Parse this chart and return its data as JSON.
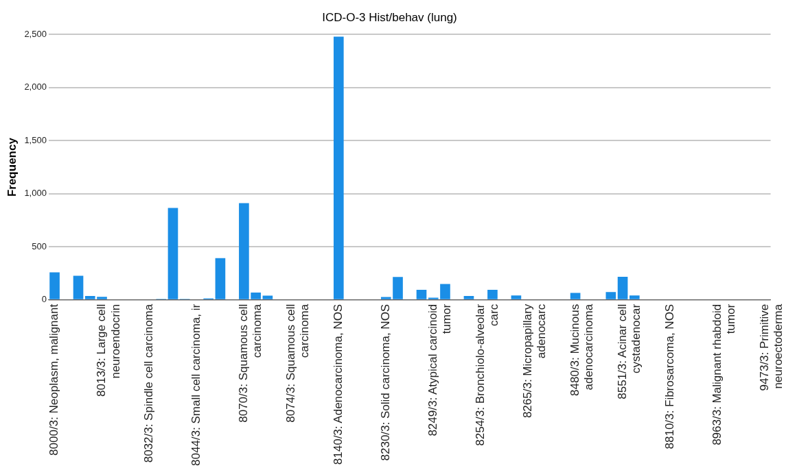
{
  "chart_data": {
    "type": "bar",
    "title": "ICD-O-3 Hist/behav (lung)",
    "ylabel": "Frequency",
    "categories": [
      "8000/3: Neoplasm, malignant",
      null,
      null,
      null,
      "8013/3: Large cell\nneuroendocrin",
      null,
      null,
      null,
      "8032/3: Spindle cell carcinoma",
      null,
      null,
      null,
      "8044/3: Small cell carcinoma, ir",
      null,
      null,
      null,
      "8070/3: Squamous cell\ncarcinoma",
      null,
      null,
      null,
      "8074/3: Squamous cell\ncarcinoma",
      null,
      null,
      null,
      "8140/3: Adenocarcinoma, NOS",
      null,
      null,
      null,
      "8230/3: Solid carcinoma, NOS",
      null,
      null,
      null,
      "8249/3: Atypical carcinoid\ntumor",
      null,
      null,
      null,
      "8254/3: Bronchiolo-alveolar\ncarc",
      null,
      null,
      null,
      "8265/3: Micropapillary\nadenocarc",
      null,
      null,
      null,
      "8480/3: Mucinous\nadenocarcinoma",
      null,
      null,
      null,
      "8551/3: Acinar cell\ncystadenocar",
      null,
      null,
      null,
      "8810/3: Fibrosarcoma, NOS",
      null,
      null,
      null,
      "8963/3: Malignant rhabdoid\ntumor",
      null,
      null,
      null,
      "9473/3: Primitive\nneuroectoderma"
    ],
    "values": [
      260,
      null,
      227,
      38,
      30,
      null,
      null,
      null,
      null,
      10,
      866,
      10,
      null,
      15,
      394,
      null,
      912,
      70,
      40,
      null,
      null,
      null,
      null,
      null,
      2480,
      null,
      null,
      null,
      28,
      216,
      null,
      95,
      22,
      151,
      null,
      38,
      null,
      95,
      null,
      43,
      null,
      null,
      null,
      null,
      67,
      null,
      null,
      75,
      218,
      43,
      null,
      null,
      null,
      null,
      null,
      null,
      null,
      null,
      null,
      null,
      null
    ],
    "color": "#1a8ee6",
    "ylim": [
      0,
      2500
    ],
    "yticks": [
      0,
      500,
      {
        "value": 1000,
        "label": "1,000"
      },
      {
        "value": 1500,
        "label": "1,500"
      },
      {
        "value": 2000,
        "label": "2,000"
      },
      {
        "value": 2500,
        "label": "2,500"
      }
    ],
    "grid": "y"
  }
}
